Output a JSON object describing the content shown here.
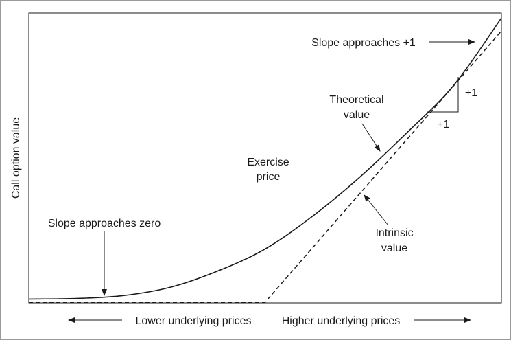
{
  "chart_data": {
    "type": "line",
    "ylabel": "Call option value",
    "xaxis_left_label": "Lower underlying prices",
    "xaxis_right_label": "Higher underlying prices",
    "exercise_price_label": [
      "Exercise",
      "price"
    ],
    "x_range": [
      0,
      100
    ],
    "y_range": [
      0,
      100
    ],
    "exercise_price": 50,
    "series": [
      {
        "id": "theoretical",
        "style": "solid",
        "x": [
          0,
          10,
          20,
          30,
          40,
          50,
          60,
          70,
          80,
          90,
          100
        ],
        "y": [
          1.1,
          1.3,
          2.3,
          5.2,
          10.8,
          18.4,
          29.7,
          43.2,
          58.6,
          75.2,
          98.3
        ]
      },
      {
        "id": "intrinsic",
        "style": "dashed",
        "x": [
          0,
          50,
          100
        ],
        "y": [
          0,
          0,
          93.8
        ]
      }
    ],
    "annotations": {
      "slope_zero": "Slope approaches zero",
      "slope_one": "Slope approaches +1",
      "theoretical_label": [
        "Theoretical",
        "value"
      ],
      "intrinsic_label": [
        "Intrinsic",
        "value"
      ],
      "triangle_rise": "+1",
      "triangle_run": "+1"
    }
  }
}
